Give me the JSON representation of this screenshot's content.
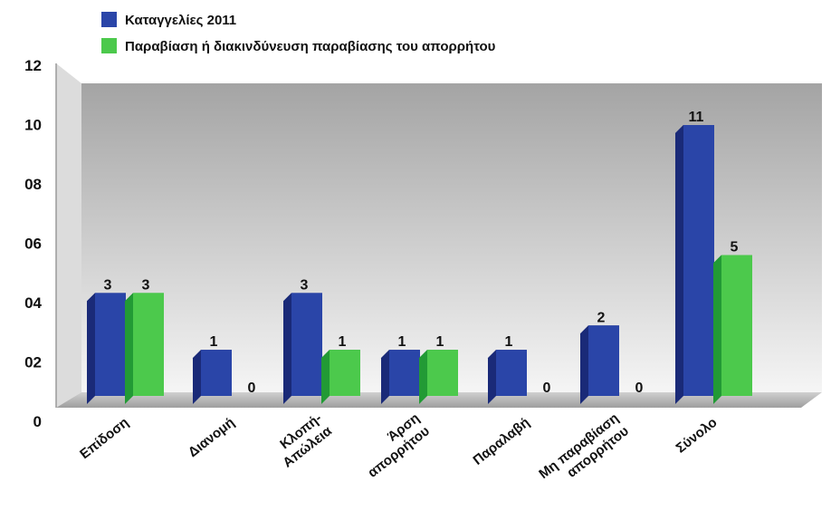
{
  "chart_data": {
    "type": "bar",
    "categories": [
      [
        "Επίδοση"
      ],
      [
        "Διανομή"
      ],
      [
        "Κλοπή-",
        "Απώλεια"
      ],
      [
        "Άρση",
        "απορρήτου"
      ],
      [
        "Παραλαβή"
      ],
      [
        "Μη παραβίαση",
        "απορρήτου"
      ],
      [
        "Σύνολο"
      ]
    ],
    "series": [
      {
        "name": "Καταγγελίες 2011",
        "values": [
          3,
          1,
          3,
          1,
          1,
          2,
          11
        ]
      },
      {
        "name": "Παραβίαση ή διακινδύνευση παραβίασης του απορρήτου",
        "values": [
          3,
          0,
          1,
          1,
          0,
          0,
          5
        ]
      }
    ],
    "bar_heights": [
      [
        3.8,
        1.7,
        3.8,
        1.7,
        1.7,
        2.6,
        10
      ],
      [
        3.8,
        0,
        1.7,
        1.7,
        0,
        0,
        5.2
      ]
    ],
    "ylim": [
      0,
      12
    ],
    "yticks": [
      "0",
      "02",
      "04",
      "06",
      "08",
      "10",
      "12"
    ],
    "grid": false,
    "legend_position": "top-left",
    "colors": {
      "series1": "#2a45a8",
      "series1_dark": "#1a2a78",
      "series2": "#4cc94c",
      "series2_dark": "#229a35",
      "wall_top": "#a4a4a4",
      "wall_bottom": "#f4f4f4",
      "floor": "#bdbdbd"
    }
  }
}
